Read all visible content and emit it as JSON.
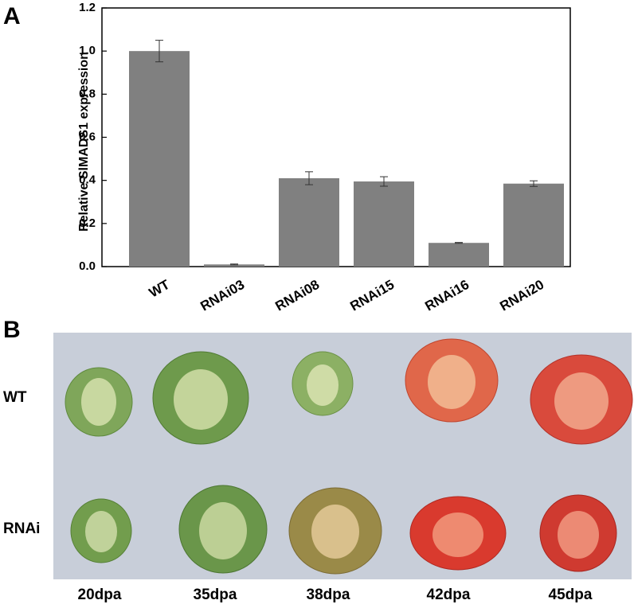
{
  "chart_data": {
    "type": "bar",
    "y_label": "Relative SlMADS1 expression",
    "categories": [
      "WT",
      "RNAi03",
      "RNAi08",
      "RNAi15",
      "RNAi16",
      "RNAi20"
    ],
    "values": [
      1.0,
      0.01,
      0.41,
      0.395,
      0.11,
      0.385
    ],
    "errors": [
      0.05,
      0.002,
      0.03,
      0.022,
      0.002,
      0.013
    ],
    "color": "#808080",
    "ylim": [
      0,
      1.2
    ],
    "yticks": [
      {
        "value": 0,
        "label": "0.0"
      },
      0.2,
      0.4,
      0.6,
      0.8,
      {
        "value": 1,
        "label": "1.0"
      },
      1.2
    ]
  },
  "panel_labels": [
    "A",
    "B"
  ],
  "photo": {
    "rows": [
      "WT",
      "RNAi"
    ],
    "columns": [
      "20dpa",
      "35dpa",
      "38dpa",
      "42dpa",
      "45dpa"
    ]
  }
}
